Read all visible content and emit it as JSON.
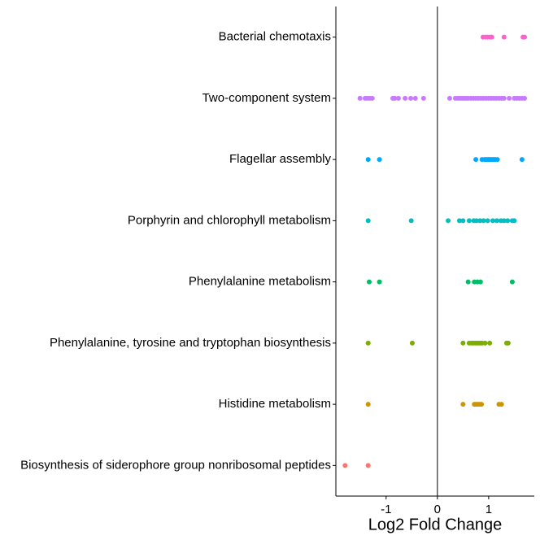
{
  "chart_data": {
    "type": "strip",
    "x_label": "Log2 Fold Change",
    "categories": [
      "Biosynthesis of siderophore group nonribosomal peptides",
      "Histidine metabolism",
      "Phenylalanine, tyrosine and tryptophan biosynthesis",
      "Phenylalanine metabolism",
      "Porphyrin and chlorophyll metabolism",
      "Flagellar assembly",
      "Two-component system",
      "Bacterial chemotaxis"
    ],
    "colors": [
      "#F8766D",
      "#CD9600",
      "#7CAE00",
      "#00BE67",
      "#00BFC4",
      "#00A9FF",
      "#C77CFF",
      "#FF61CC"
    ],
    "values": [
      [
        -1.8,
        -1.35
      ],
      [
        -1.35,
        0.5,
        0.72,
        0.75,
        0.78,
        0.82,
        0.86,
        1.2,
        1.25
      ],
      [
        -1.35,
        -0.49,
        0.5,
        0.62,
        0.67,
        0.71,
        0.75,
        0.79,
        0.83,
        0.87,
        0.93,
        1.02,
        1.35,
        1.38
      ],
      [
        -1.33,
        -1.13,
        0.6,
        0.72,
        0.78,
        0.84,
        1.46
      ],
      [
        -1.35,
        -0.51,
        0.21,
        0.43,
        0.5,
        0.62,
        0.71,
        0.76,
        0.83,
        0.9,
        0.98,
        1.08,
        1.16,
        1.24,
        1.3,
        1.37,
        1.46,
        1.5
      ],
      [
        -1.35,
        -1.13,
        0.75,
        0.87,
        0.92,
        0.95,
        0.98,
        1.0,
        1.02,
        1.05,
        1.08,
        1.1,
        1.13,
        1.17,
        1.65
      ],
      [
        -1.51,
        -1.41,
        -1.37,
        -1.32,
        -1.27,
        -0.87,
        -0.83,
        -0.76,
        -0.63,
        -0.52,
        -0.43,
        -0.27,
        0.24,
        0.35,
        0.4,
        0.44,
        0.48,
        0.52,
        0.56,
        0.6,
        0.65,
        0.7,
        0.75,
        0.8,
        0.85,
        0.9,
        0.95,
        1.0,
        1.05,
        1.1,
        1.15,
        1.2,
        1.25,
        1.3,
        1.4,
        1.5,
        1.55,
        1.6,
        1.65,
        1.7
      ],
      [
        0.89,
        0.94,
        0.98,
        1.03,
        1.06,
        1.3,
        1.67,
        1.7
      ]
    ],
    "xlim": [
      -1.98,
      1.89
    ],
    "xticks": [
      -1,
      0,
      1
    ],
    "reference_line": 0
  }
}
